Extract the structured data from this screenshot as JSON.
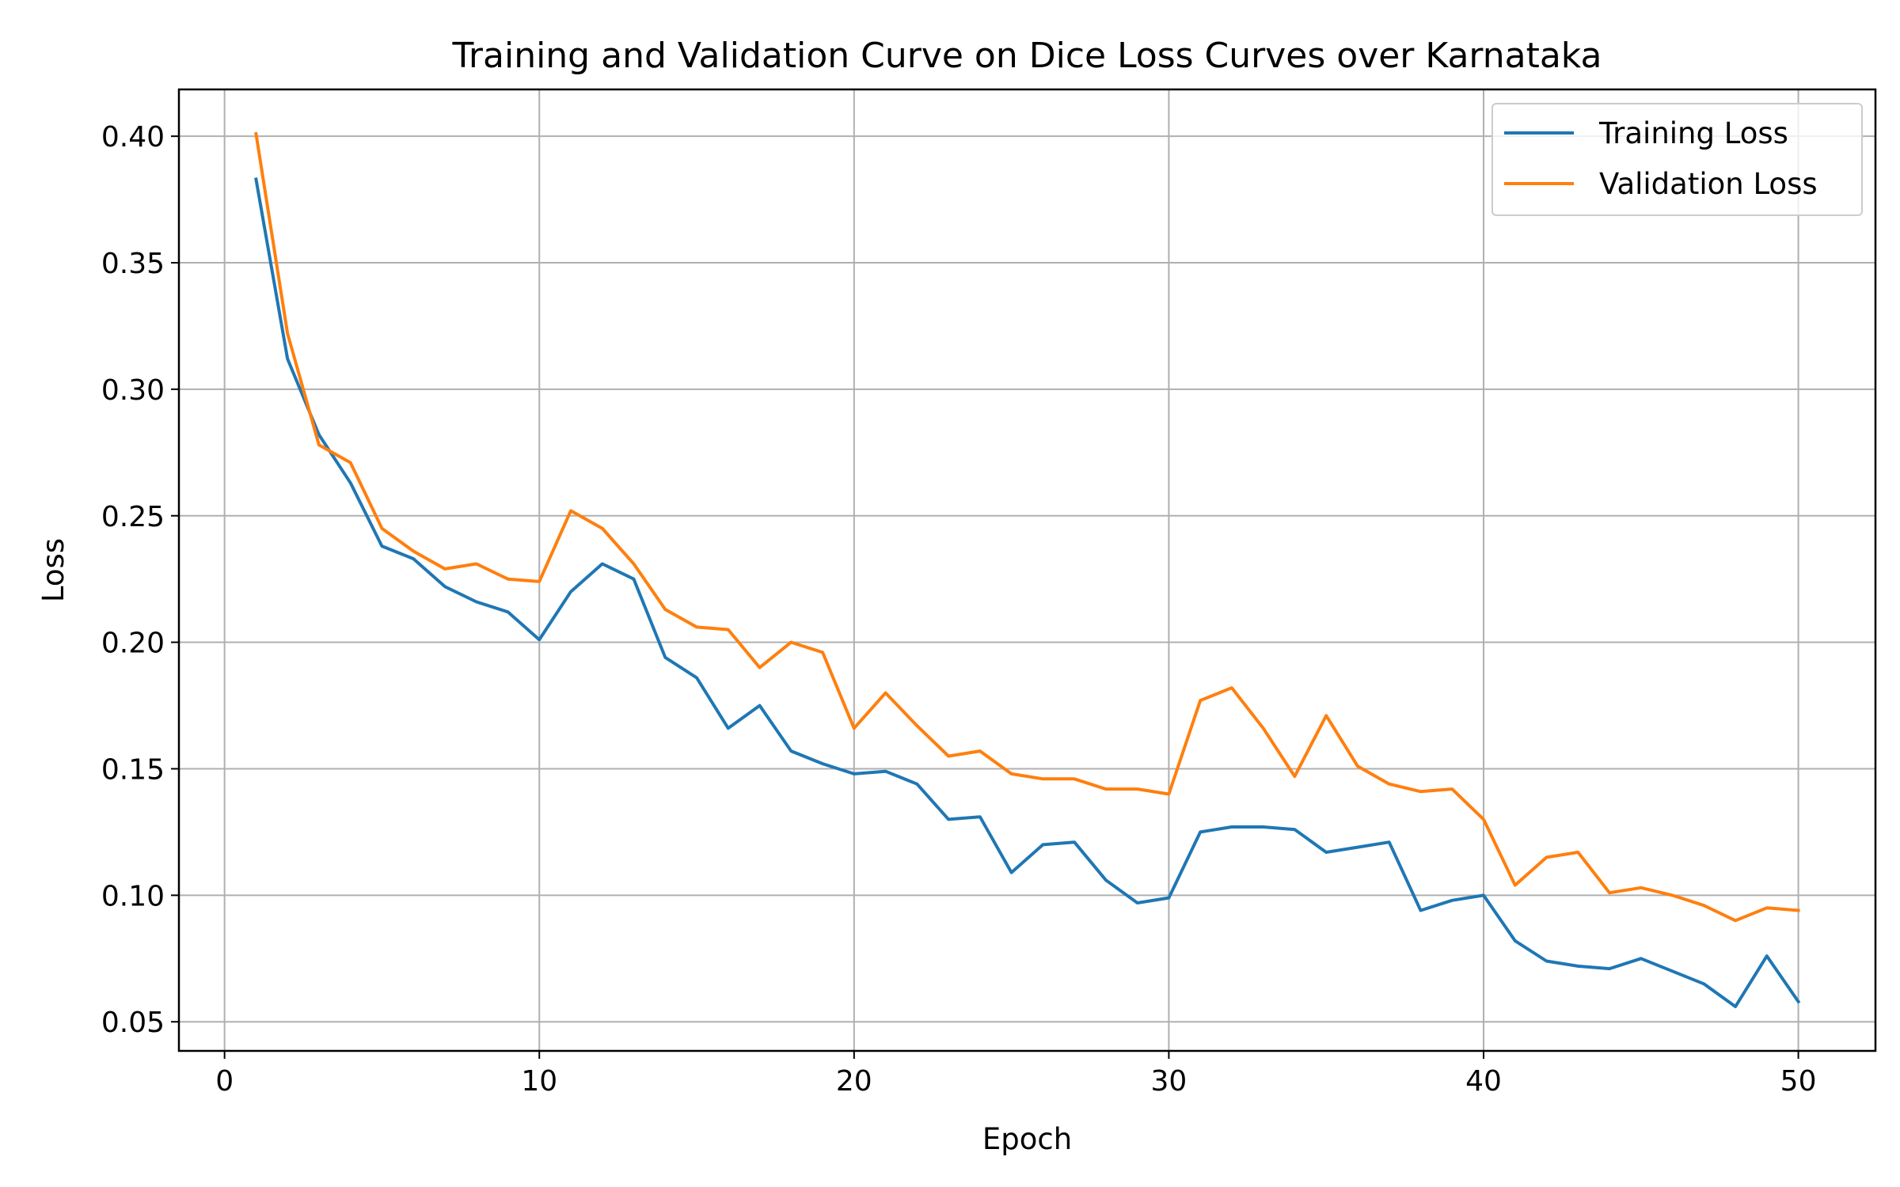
{
  "chart_data": {
    "type": "line",
    "title": "Training and Validation Curve on Dice Loss Curves over Karnataka",
    "xlabel": "Epoch",
    "ylabel": "Loss",
    "xlim": [
      -1.45,
      52.45
    ],
    "ylim": [
      0.0385,
      0.4185
    ],
    "xticks": [
      0,
      10,
      20,
      30,
      40,
      50
    ],
    "xtick_labels": [
      "0",
      "10",
      "20",
      "30",
      "40",
      "50"
    ],
    "yticks": [
      0.05,
      0.1,
      0.15,
      0.2,
      0.25,
      0.3,
      0.35,
      0.4
    ],
    "ytick_labels": [
      "0.05",
      "0.10",
      "0.15",
      "0.20",
      "0.25",
      "0.30",
      "0.35",
      "0.40"
    ],
    "grid": true,
    "legend_position": "top-right",
    "x": [
      1,
      2,
      3,
      4,
      5,
      6,
      7,
      8,
      9,
      10,
      11,
      12,
      13,
      14,
      15,
      16,
      17,
      18,
      19,
      20,
      21,
      22,
      23,
      24,
      25,
      26,
      27,
      28,
      29,
      30,
      31,
      32,
      33,
      34,
      35,
      36,
      37,
      38,
      39,
      40,
      41,
      42,
      43,
      44,
      45,
      46,
      47,
      48,
      49,
      50
    ],
    "series": [
      {
        "name": "Training Loss",
        "color": "#1f77b4",
        "values": [
          0.383,
          0.312,
          0.282,
          0.263,
          0.238,
          0.233,
          0.222,
          0.216,
          0.212,
          0.201,
          0.22,
          0.231,
          0.225,
          0.194,
          0.186,
          0.166,
          0.175,
          0.157,
          0.152,
          0.148,
          0.149,
          0.144,
          0.13,
          0.131,
          0.109,
          0.12,
          0.121,
          0.106,
          0.097,
          0.099,
          0.125,
          0.127,
          0.127,
          0.126,
          0.117,
          0.119,
          0.121,
          0.094,
          0.098,
          0.1,
          0.082,
          0.074,
          0.072,
          0.071,
          0.075,
          0.07,
          0.065,
          0.056,
          0.076,
          0.058
        ]
      },
      {
        "name": "Validation Loss",
        "color": "#ff7f0e",
        "values": [
          0.401,
          0.322,
          0.278,
          0.271,
          0.245,
          0.236,
          0.229,
          0.231,
          0.225,
          0.224,
          0.252,
          0.245,
          0.231,
          0.213,
          0.206,
          0.205,
          0.19,
          0.2,
          0.196,
          0.166,
          0.18,
          0.167,
          0.155,
          0.157,
          0.148,
          0.146,
          0.146,
          0.142,
          0.142,
          0.14,
          0.177,
          0.182,
          0.166,
          0.147,
          0.171,
          0.151,
          0.144,
          0.141,
          0.142,
          0.13,
          0.104,
          0.115,
          0.117,
          0.101,
          0.103,
          0.1,
          0.096,
          0.09,
          0.095,
          0.094
        ]
      }
    ]
  },
  "colors": {
    "grid": "#b0b0b0",
    "axes": "#000000",
    "background": "#ffffff",
    "legend_border": "#cccccc"
  }
}
